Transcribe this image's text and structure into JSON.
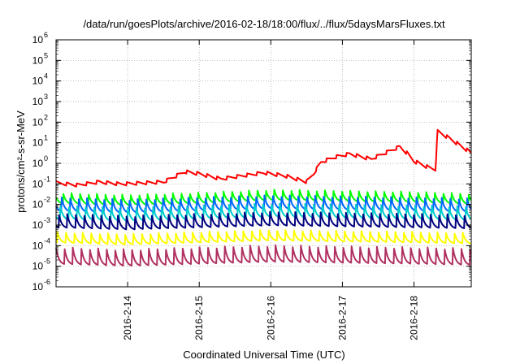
{
  "chart_data": {
    "type": "line",
    "title": "/data/run/goesPlots/archive/2016-02-18/18:00/flux/../flux/5daysMarsFluxes.txt",
    "xlabel": "Coordinated Universal Time (UTC)",
    "ylabel": "protons/cm²-s-sr-MeV",
    "yscale": "log",
    "ylim": [
      1e-06,
      1000000.0
    ],
    "xlim": [
      13.0,
      18.8
    ],
    "x_unit": "day of February 2016 (UTC)",
    "x_ticks": [
      14,
      15,
      16,
      17,
      18
    ],
    "x_tick_labels": [
      "2016-2-14",
      "2016-2-15",
      "2016-2-16",
      "2016-2-17",
      "2016-2-18"
    ],
    "y_ticks": [
      {
        "base": "10",
        "exp": "-6"
      },
      {
        "base": "10",
        "exp": "-5"
      },
      {
        "base": "10",
        "exp": "-4"
      },
      {
        "base": "10",
        "exp": "-3"
      },
      {
        "base": "10",
        "exp": "-2"
      },
      {
        "base": "10",
        "exp": "-1"
      },
      {
        "base": "10",
        "exp": "0"
      },
      {
        "base": "10",
        "exp": "1"
      },
      {
        "base": "10",
        "exp": "2"
      },
      {
        "base": "10",
        "exp": "3"
      },
      {
        "base": "10",
        "exp": "4"
      },
      {
        "base": "10",
        "exp": "5"
      },
      {
        "base": "10",
        "exp": "6"
      }
    ],
    "grid": true,
    "legend": "none",
    "series": [
      {
        "color": "#ff0000",
        "values_log10_at_x": [
          [
            13.0,
            -0.95
          ],
          [
            13.3,
            -1.05
          ],
          [
            13.6,
            -0.9
          ],
          [
            13.9,
            -1.0
          ],
          [
            14.2,
            -0.95
          ],
          [
            14.5,
            -0.9
          ],
          [
            14.8,
            -0.4
          ],
          [
            15.0,
            -0.5
          ],
          [
            15.3,
            -0.75
          ],
          [
            15.6,
            -0.6
          ],
          [
            15.9,
            -0.45
          ],
          [
            16.2,
            -0.6
          ],
          [
            16.5,
            -0.9
          ],
          [
            16.6,
            -0.5
          ],
          [
            16.7,
            0.05
          ],
          [
            16.9,
            0.3
          ],
          [
            17.1,
            0.45
          ],
          [
            17.4,
            0.2
          ],
          [
            17.6,
            0.5
          ],
          [
            17.8,
            0.8
          ],
          [
            17.9,
            0.5
          ],
          [
            18.0,
            0.1
          ],
          [
            18.2,
            -0.2
          ],
          [
            18.3,
            -0.3
          ],
          [
            18.33,
            1.55
          ],
          [
            18.5,
            1.2
          ],
          [
            18.8,
            0.5
          ]
        ]
      },
      {
        "color": "#00ff00",
        "values_log10_at_x": [
          [
            13.0,
            -1.7
          ],
          [
            14.0,
            -1.8
          ],
          [
            15.0,
            -1.7
          ],
          [
            16.0,
            -1.55
          ],
          [
            17.0,
            -1.6
          ],
          [
            18.0,
            -1.65
          ],
          [
            18.8,
            -1.75
          ]
        ]
      },
      {
        "color": "#0066ff",
        "values_log10_at_x": [
          [
            13.0,
            -2.0
          ],
          [
            14.0,
            -2.1
          ],
          [
            15.0,
            -2.0
          ],
          [
            16.0,
            -1.9
          ],
          [
            17.0,
            -1.95
          ],
          [
            18.0,
            -2.0
          ],
          [
            18.8,
            -2.05
          ]
        ]
      },
      {
        "color": "#00cccc",
        "values_log10_at_x": [
          [
            13.0,
            -2.4
          ],
          [
            14.0,
            -2.5
          ],
          [
            15.0,
            -2.4
          ],
          [
            16.0,
            -2.3
          ],
          [
            17.0,
            -2.35
          ],
          [
            18.0,
            -2.4
          ],
          [
            18.8,
            -2.45
          ]
        ]
      },
      {
        "color": "#000080",
        "values_log10_at_x": [
          [
            13.0,
            -2.8
          ],
          [
            14.0,
            -2.9
          ],
          [
            15.0,
            -2.8
          ],
          [
            16.0,
            -2.7
          ],
          [
            17.0,
            -2.75
          ],
          [
            18.0,
            -2.8
          ],
          [
            18.8,
            -2.85
          ]
        ]
      },
      {
        "color": "#ffff00",
        "values_log10_at_x": [
          [
            13.0,
            -3.6
          ],
          [
            14.0,
            -3.7
          ],
          [
            15.0,
            -3.6
          ],
          [
            16.0,
            -3.5
          ],
          [
            17.0,
            -3.55
          ],
          [
            18.0,
            -3.6
          ],
          [
            18.8,
            -3.65
          ]
        ]
      },
      {
        "color": "#b03060",
        "values_log10_at_x": [
          [
            13.0,
            -4.5
          ],
          [
            14.0,
            -4.6
          ],
          [
            15.0,
            -4.5
          ],
          [
            16.0,
            -4.4
          ],
          [
            17.0,
            -4.45
          ],
          [
            18.0,
            -4.5
          ],
          [
            18.8,
            -4.55
          ]
        ]
      }
    ]
  }
}
